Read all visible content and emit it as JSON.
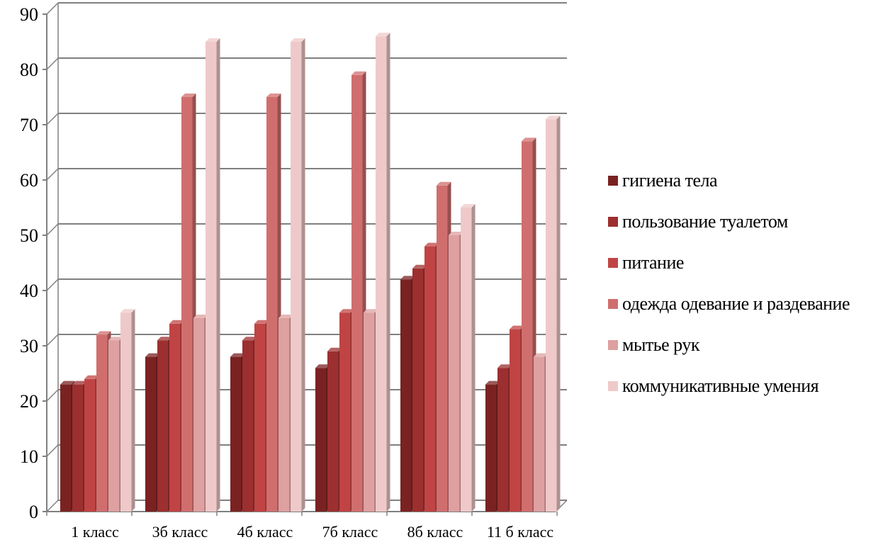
{
  "chart_data": {
    "type": "bar",
    "title": "",
    "xlabel": "",
    "ylabel": "",
    "ylim": [
      0,
      90
    ],
    "yticks": [
      0,
      10,
      20,
      30,
      40,
      50,
      60,
      70,
      80,
      90
    ],
    "grid": true,
    "three_d": true,
    "legend_position": "right",
    "categories": [
      "1 класс",
      "3б класс",
      "4б класс",
      "7б класс",
      "8б класс",
      "11 б класс"
    ],
    "series": [
      {
        "name": "гигиена тела",
        "color": "#7a2222",
        "values": [
          23,
          28,
          28,
          26,
          42,
          23
        ]
      },
      {
        "name": "пользование туалетом",
        "color": "#9c2f2f",
        "values": [
          23,
          31,
          31,
          29,
          44,
          26
        ]
      },
      {
        "name": "питание",
        "color": "#c04444",
        "values": [
          24,
          34,
          34,
          36,
          48,
          33
        ]
      },
      {
        "name": "одежда одевание и раздевание",
        "color": "#d06e6e",
        "values": [
          32,
          75,
          75,
          79,
          59,
          67
        ]
      },
      {
        "name": "мытье рук",
        "color": "#dea0a0",
        "values": [
          31,
          35,
          35,
          36,
          50,
          28
        ]
      },
      {
        "name": "коммуникативные умения",
        "color": "#efc9c9",
        "values": [
          36,
          85,
          85,
          86,
          55,
          71
        ]
      }
    ]
  }
}
